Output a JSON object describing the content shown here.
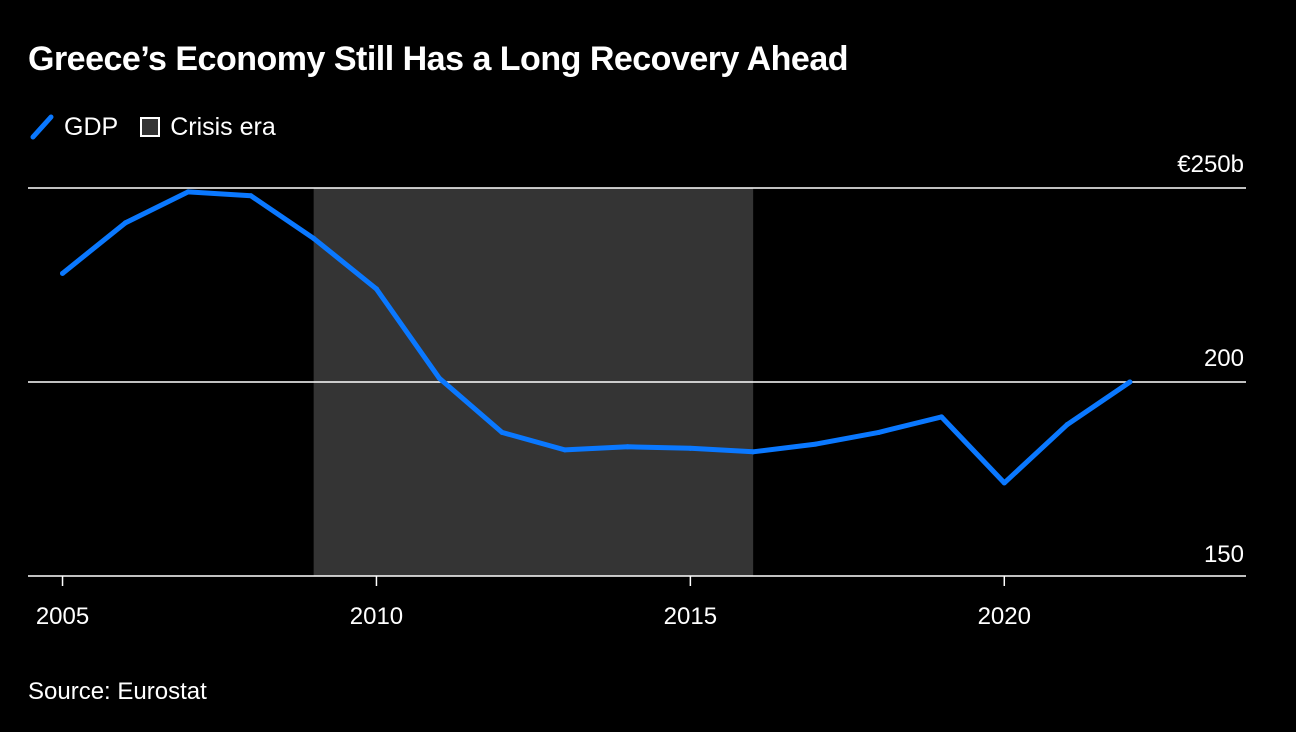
{
  "title": "Greece’s Economy Still Has a Long Recovery Ahead",
  "legend": {
    "items": [
      {
        "label": "GDP",
        "icon": "line-swatch-icon"
      },
      {
        "label": "Crisis era",
        "icon": "box-swatch-icon"
      }
    ]
  },
  "source": "Source: Eurostat",
  "colors": {
    "background": "#000000",
    "line": "#0a78ff",
    "crisis": "#343434",
    "grid": "#ffffff",
    "text": "#ffffff"
  },
  "chart_data": {
    "type": "line",
    "title": "Greece’s Economy Still Has a Long Recovery Ahead",
    "xlabel": "",
    "ylabel": "",
    "x": [
      2005,
      2006,
      2007,
      2008,
      2009,
      2010,
      2011,
      2012,
      2013,
      2014,
      2015,
      2016,
      2017,
      2018,
      2019,
      2020,
      2021,
      2022
    ],
    "series": [
      {
        "name": "GDP",
        "values": [
          228,
          241,
          249,
          248,
          237,
          224,
          201,
          187,
          182.5,
          183.3,
          182.9,
          182,
          184,
          187,
          191,
          174,
          189,
          200
        ]
      }
    ],
    "shaded_region": {
      "label": "Crisis era",
      "x_start": 2009,
      "x_end": 2016
    },
    "xlim": [
      2004.45,
      2023.85
    ],
    "ylim": [
      150,
      250
    ],
    "x_ticks": [
      2005,
      2010,
      2015,
      2020
    ],
    "x_tick_labels": [
      "2005",
      "2010",
      "2015",
      "2020"
    ],
    "y_ticks": [
      150,
      200,
      250
    ],
    "y_tick_labels": [
      "150",
      "200",
      "€250b"
    ],
    "grid": true
  }
}
